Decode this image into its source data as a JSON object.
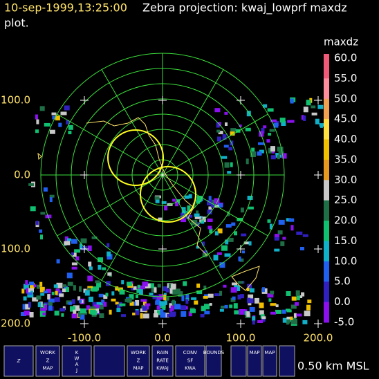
{
  "header": {
    "time": "10-sep-1999,13:25:00",
    "title": "Zebra projection: kwaj_lowprf maxdz",
    "title_cont": "plot."
  },
  "plot": {
    "x_labels": [
      "-100.0",
      "0.0",
      "100.0",
      "200.0"
    ],
    "y_labels": [
      "100.0",
      "0.0",
      "100.0",
      "200.0"
    ]
  },
  "colorbar": {
    "title": "maxdz",
    "labels": [
      "60.0",
      "55.0",
      "50.0",
      "45.0",
      "40.0",
      "35.0",
      "30.0",
      "25.0",
      "20.0",
      "15.0",
      "10.0",
      "5.0",
      "0.0",
      "-5.0"
    ],
    "colors": [
      "#f05a78",
      "#ff8c9c",
      "#f0a050",
      "#ffe040",
      "#f0c000",
      "#e89a20",
      "#c8c8c8",
      "#1e6e46",
      "#10c070",
      "#10b0c8",
      "#2060f0",
      "#3020c0",
      "#8a10f0"
    ]
  },
  "icon_bar": {
    "icons": [
      [
        "Z"
      ],
      [
        "WORK",
        "Z",
        "MAP"
      ],
      [
        "K",
        "W",
        "A",
        "J"
      ],
      [],
      [
        "WORK",
        "Z",
        "MAP"
      ],
      [
        "RAIN",
        "RATE",
        "KWAJ"
      ],
      [
        "CONV",
        "SF",
        "KWA"
      ],
      [
        "BOUNDS"
      ],
      [],
      [
        "MAP"
      ],
      [
        "MAP"
      ],
      []
    ],
    "altitude": "0.50 km MSL"
  }
}
